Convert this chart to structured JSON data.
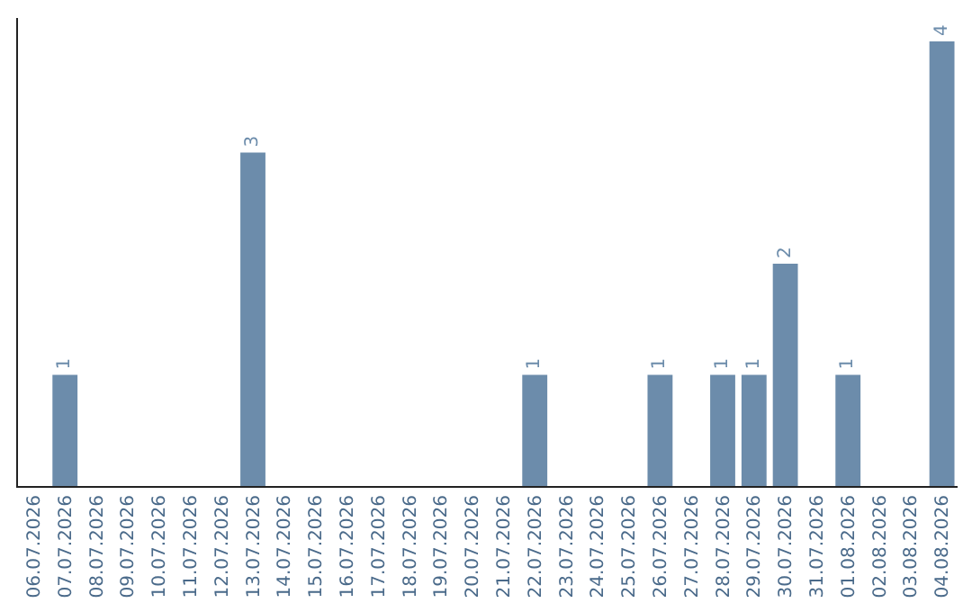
{
  "chart_data": {
    "type": "bar",
    "categories": [
      "06.07.2026",
      "07.07.2026",
      "08.07.2026",
      "09.07.2026",
      "10.07.2026",
      "11.07.2026",
      "12.07.2026",
      "13.07.2026",
      "14.07.2026",
      "15.07.2026",
      "16.07.2026",
      "17.07.2026",
      "18.07.2026",
      "19.07.2026",
      "20.07.2026",
      "21.07.2026",
      "22.07.2026",
      "23.07.2026",
      "24.07.2026",
      "25.07.2026",
      "26.07.2026",
      "27.07.2026",
      "28.07.2026",
      "29.07.2026",
      "30.07.2026",
      "31.07.2026",
      "01.08.2026",
      "02.08.2026",
      "03.08.2026",
      "04.08.2026"
    ],
    "values": [
      0,
      1,
      0,
      0,
      0,
      0,
      0,
      3,
      0,
      0,
      0,
      0,
      0,
      0,
      0,
      0,
      1,
      0,
      0,
      0,
      1,
      0,
      1,
      1,
      2,
      0,
      1,
      0,
      0,
      4
    ],
    "value_labels": [
      null,
      "1",
      null,
      null,
      null,
      null,
      null,
      "3",
      null,
      null,
      null,
      null,
      null,
      null,
      null,
      null,
      "1",
      null,
      null,
      null,
      "1",
      null,
      "1",
      "1",
      "2",
      null,
      "1",
      null,
      null,
      "4"
    ],
    "color": "#6c8cab",
    "tick_labels": "x",
    "legend": false
  }
}
